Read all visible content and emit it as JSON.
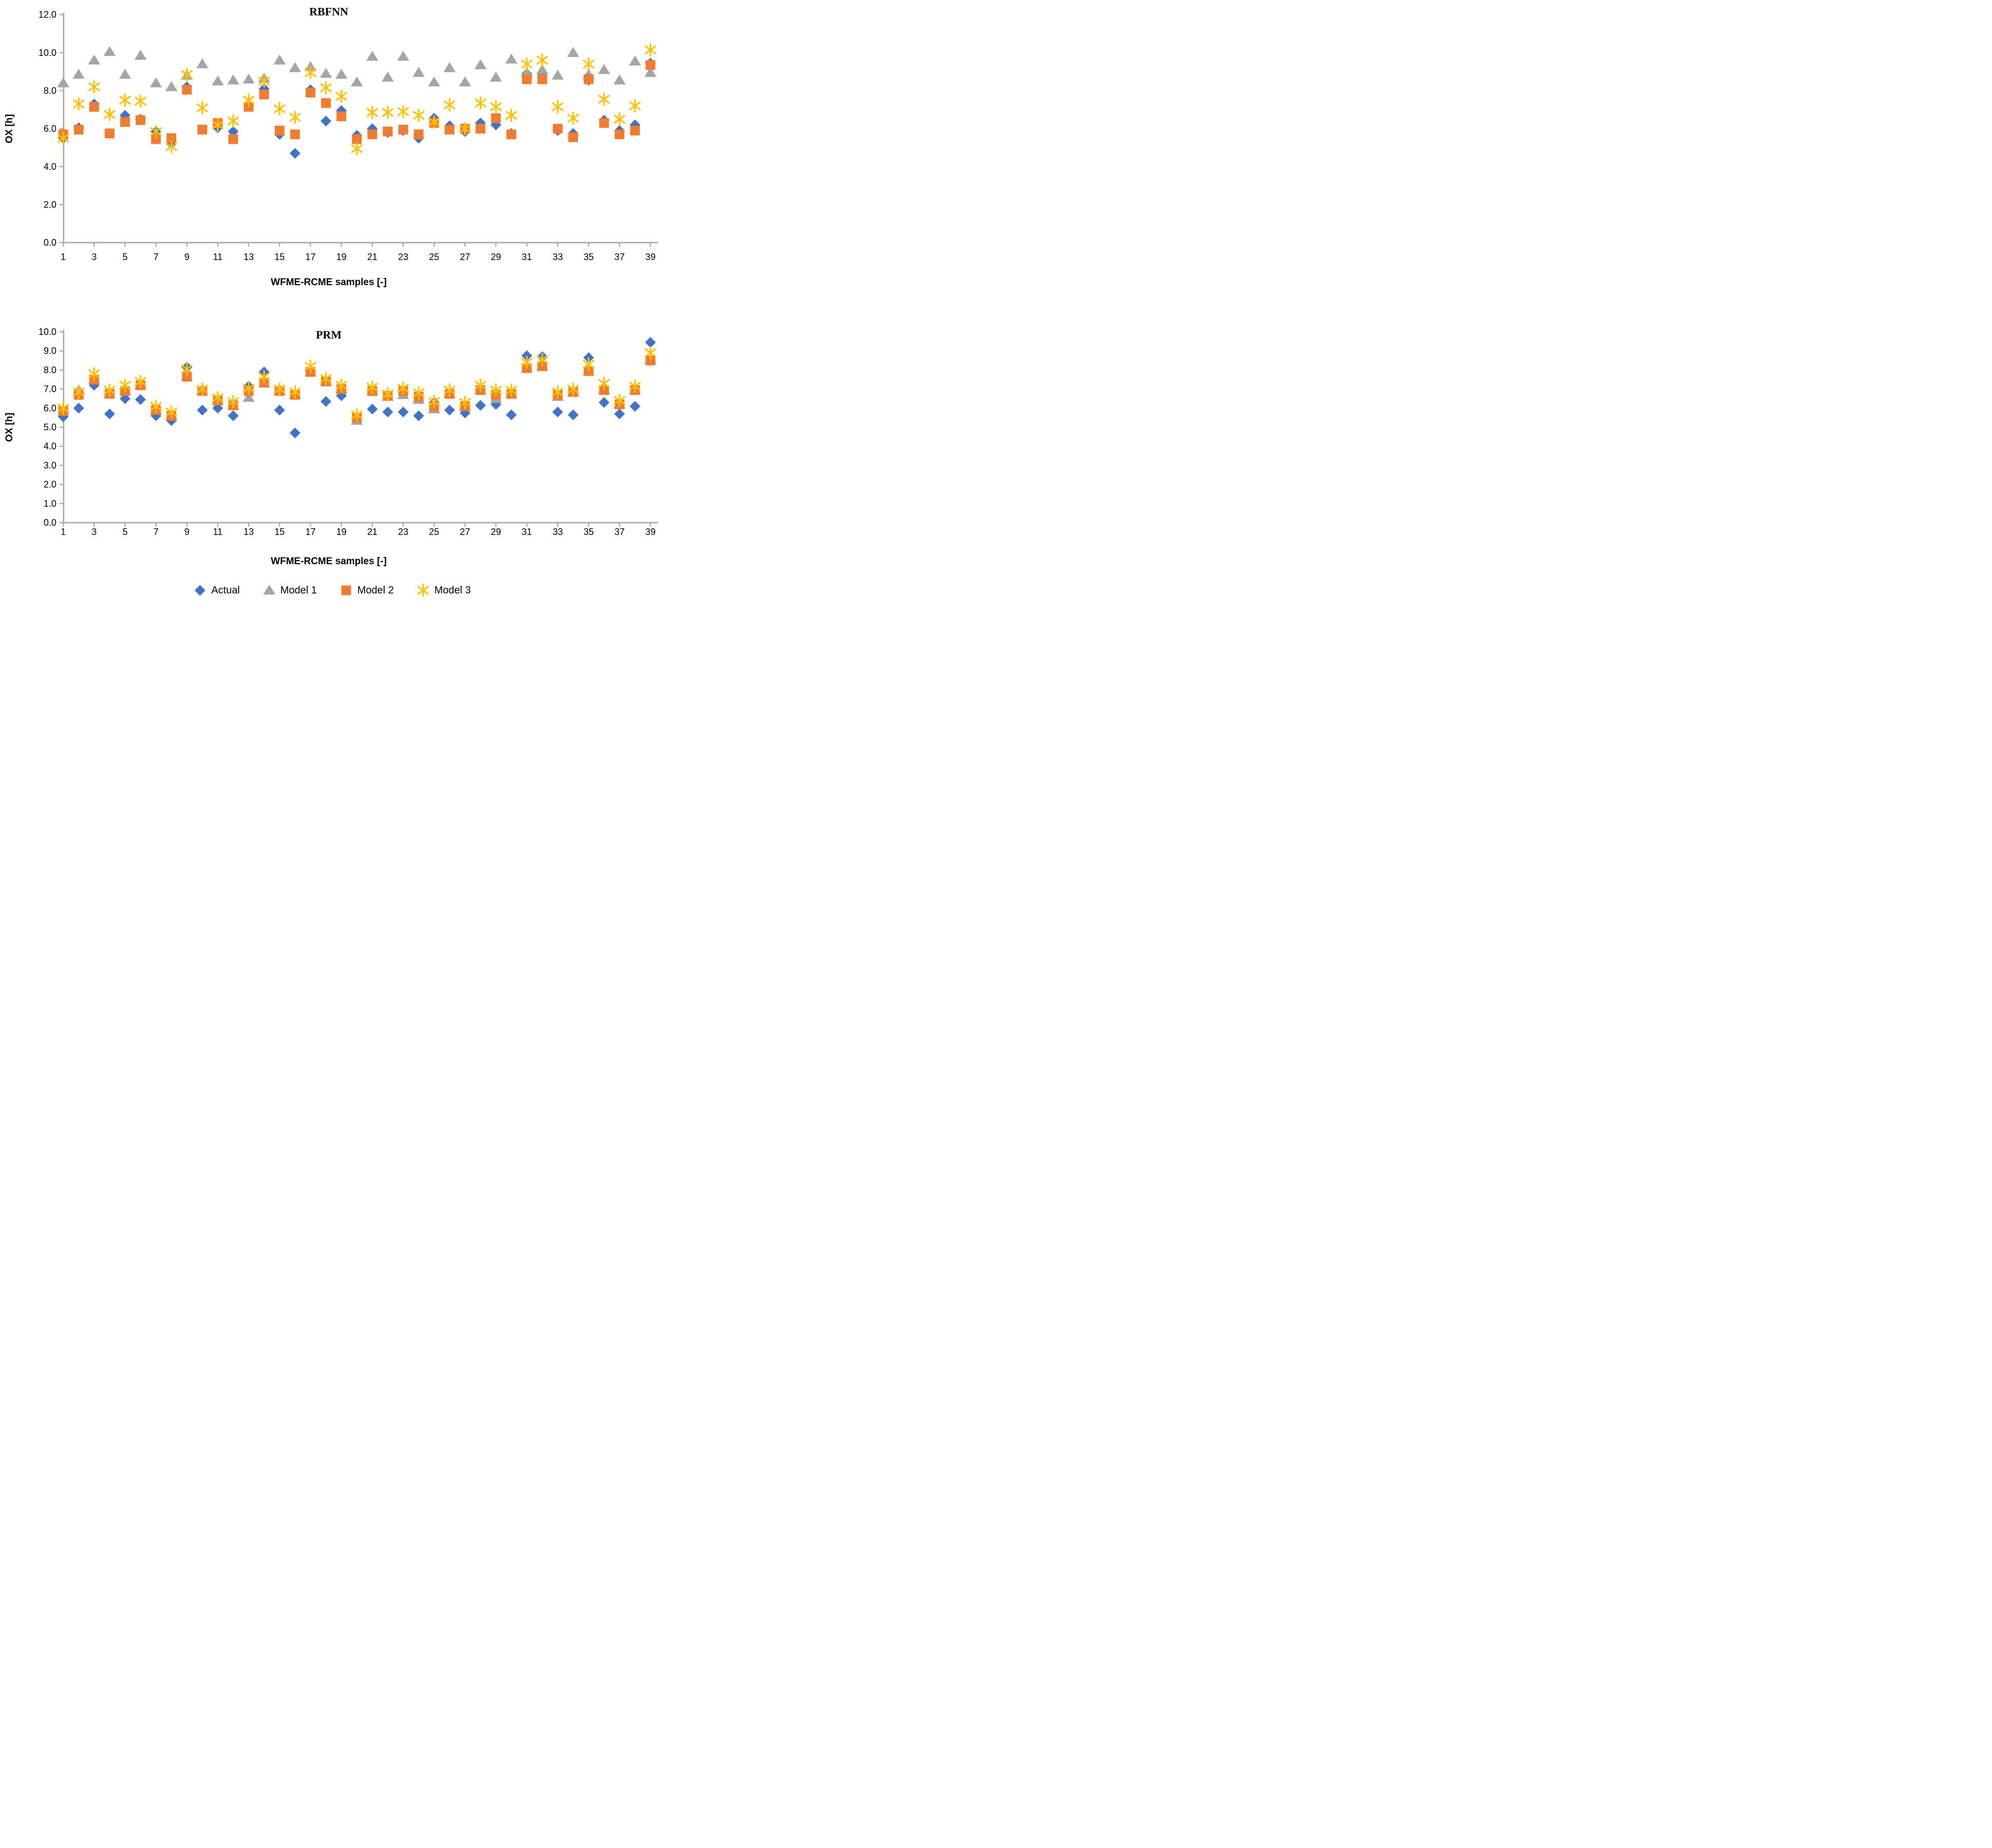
{
  "page": {
    "top_title": "RBFNN",
    "bottom_title": "PRM",
    "x_axis_title": "WFME-RCME samples [-]",
    "y_axis_title": "OX [h]"
  },
  "colors": {
    "actual": "#4472C4",
    "model1": "#A5A5A5",
    "model2": "#ED7D31",
    "model3": "#FFC000",
    "axis_line": "#A6A6A6",
    "text": "#000000"
  },
  "legend": {
    "items": [
      {
        "label": "Actual",
        "marker": "diamond",
        "color": "#4472C4"
      },
      {
        "label": "Model 1",
        "marker": "triangle",
        "color": "#A5A5A5"
      },
      {
        "label": "Model 2",
        "marker": "square",
        "color": "#ED7D31"
      },
      {
        "label": "Model 3",
        "marker": "star",
        "color": "#FFC000"
      }
    ]
  },
  "chart_data": [
    {
      "type": "scatter",
      "title": "RBFNN",
      "xlabel": "WFME-RCME samples [-]",
      "ylabel": "OX [h]",
      "ylim": [
        0,
        12
      ],
      "ytick_labels": [
        "0.0",
        "2.0",
        "4.0",
        "6.0",
        "8.0",
        "10.0",
        "12.0"
      ],
      "xlim": [
        1,
        39
      ],
      "xtick_labels": [
        "1",
        "3",
        "5",
        "7",
        "9",
        "11",
        "13",
        "15",
        "17",
        "19",
        "21",
        "23",
        "25",
        "27",
        "29",
        "31",
        "33",
        "35",
        "37",
        "39"
      ],
      "grid": false,
      "legend_position": "shared-bottom",
      "x": [
        1,
        2,
        3,
        4,
        5,
        6,
        7,
        8,
        9,
        10,
        11,
        12,
        13,
        14,
        15,
        16,
        17,
        18,
        19,
        20,
        21,
        22,
        23,
        24,
        25,
        26,
        27,
        28,
        29,
        30,
        31,
        32,
        33,
        34,
        35,
        36,
        37,
        38,
        39
      ],
      "series": [
        {
          "name": "Actual",
          "marker": "diamond",
          "color": "#4472C4",
          "values": [
            5.5,
            6.05,
            7.3,
            5.75,
            6.7,
            6.5,
            5.85,
            5.2,
            8.2,
            5.95,
            6.05,
            5.85,
            7.2,
            8.1,
            5.7,
            4.7,
            8.05,
            6.4,
            6.95,
            5.65,
            6.0,
            5.8,
            5.9,
            5.5,
            6.55,
            6.15,
            5.85,
            6.3,
            6.2,
            5.75,
            8.9,
            8.8,
            5.9,
            5.75,
            8.55,
            6.45,
            5.9,
            6.2,
            9.45
          ]
        },
        {
          "name": "Model 1",
          "marker": "triangle",
          "color": "#A5A5A5",
          "values": [
            8.4,
            8.85,
            9.6,
            10.05,
            8.85,
            9.85,
            8.4,
            8.2,
            8.8,
            9.4,
            8.5,
            8.55,
            8.6,
            8.65,
            9.6,
            9.2,
            9.25,
            8.9,
            8.85,
            8.45,
            9.8,
            8.7,
            9.8,
            8.95,
            8.45,
            9.2,
            8.45,
            9.35,
            8.7,
            9.65,
            8.95,
            9.1,
            8.8,
            10.0,
            8.85,
            9.1,
            8.55,
            9.55,
            8.95
          ]
        },
        {
          "name": "Model 2",
          "marker": "square",
          "color": "#ED7D31",
          "values": [
            5.7,
            5.95,
            7.15,
            5.75,
            6.35,
            6.45,
            5.45,
            5.5,
            8.05,
            5.95,
            6.3,
            5.45,
            7.15,
            7.8,
            5.9,
            5.7,
            7.9,
            7.35,
            6.65,
            5.45,
            5.7,
            5.85,
            5.95,
            5.7,
            6.3,
            5.95,
            6.0,
            6.0,
            6.55,
            5.7,
            8.6,
            8.6,
            6.0,
            5.55,
            8.6,
            6.3,
            5.7,
            5.9,
            9.35
          ]
        },
        {
          "name": "Model 3",
          "marker": "star",
          "color": "#FFC000",
          "values": [
            5.5,
            7.3,
            8.2,
            6.75,
            7.5,
            7.45,
            5.85,
            5.05,
            8.85,
            7.1,
            6.2,
            6.4,
            7.5,
            8.5,
            7.05,
            6.6,
            8.95,
            8.15,
            7.7,
            4.95,
            6.85,
            6.85,
            6.9,
            6.7,
            6.35,
            7.25,
            6.0,
            7.35,
            7.15,
            6.7,
            9.4,
            9.6,
            7.15,
            6.55,
            9.4,
            7.55,
            6.5,
            7.2,
            10.15
          ]
        }
      ]
    },
    {
      "type": "scatter",
      "title": "PRM",
      "xlabel": "WFME-RCME samples [-]",
      "ylabel": "OX [h]",
      "ylim": [
        0,
        10
      ],
      "ytick_labels": [
        "0.0",
        "1.0",
        "2.0",
        "3.0",
        "4.0",
        "5.0",
        "6.0",
        "7.0",
        "8.0",
        "9.0",
        "10.0"
      ],
      "xlim": [
        1,
        39
      ],
      "xtick_labels": [
        "1",
        "3",
        "5",
        "7",
        "9",
        "11",
        "13",
        "15",
        "17",
        "19",
        "21",
        "23",
        "25",
        "27",
        "29",
        "31",
        "33",
        "35",
        "37",
        "39"
      ],
      "grid": false,
      "legend_position": "shared-bottom",
      "x": [
        1,
        2,
        3,
        4,
        5,
        6,
        7,
        8,
        9,
        10,
        11,
        12,
        13,
        14,
        15,
        16,
        17,
        18,
        19,
        20,
        21,
        22,
        23,
        24,
        25,
        26,
        27,
        28,
        29,
        30,
        31,
        32,
        33,
        34,
        35,
        36,
        37,
        38,
        39
      ],
      "series": [
        {
          "name": "Actual",
          "marker": "diamond",
          "color": "#4472C4",
          "values": [
            5.55,
            6.0,
            7.2,
            5.7,
            6.5,
            6.45,
            5.6,
            5.35,
            8.15,
            5.9,
            6.0,
            5.6,
            7.15,
            7.9,
            5.9,
            4.7,
            7.95,
            6.35,
            6.65,
            5.45,
            5.95,
            5.8,
            5.8,
            5.6,
            6.3,
            5.9,
            5.75,
            6.15,
            6.2,
            5.65,
            8.75,
            8.7,
            5.8,
            5.65,
            8.65,
            6.3,
            5.7,
            6.1,
            9.45
          ]
        },
        {
          "name": "Model 1",
          "marker": "triangle",
          "color": "#A5A5A5",
          "values": [
            5.85,
            6.95,
            7.5,
            6.75,
            6.9,
            7.2,
            5.9,
            5.6,
            7.65,
            6.9,
            6.4,
            6.15,
            6.55,
            7.3,
            6.9,
            6.7,
            7.9,
            7.4,
            7.0,
            5.35,
            6.9,
            6.6,
            6.7,
            6.45,
            5.95,
            6.75,
            6.1,
            6.95,
            6.5,
            6.75,
            8.1,
            8.2,
            6.6,
            6.85,
            7.95,
            6.95,
            6.2,
            6.95,
            8.55
          ]
        },
        {
          "name": "Model 2",
          "marker": "square",
          "color": "#ED7D31",
          "values": [
            5.85,
            6.7,
            7.5,
            6.75,
            6.9,
            7.2,
            5.9,
            5.6,
            7.65,
            6.9,
            6.4,
            6.15,
            6.9,
            7.35,
            6.9,
            6.7,
            7.9,
            7.4,
            7.0,
            5.5,
            6.9,
            6.65,
            6.9,
            6.6,
            6.1,
            6.75,
            6.1,
            6.95,
            6.7,
            6.75,
            8.1,
            8.2,
            6.7,
            6.85,
            7.95,
            6.95,
            6.2,
            6.95,
            8.5
          ]
        },
        {
          "name": "Model 3",
          "marker": "star",
          "color": "#FFC000",
          "values": [
            6.0,
            6.85,
            7.8,
            6.95,
            7.2,
            7.4,
            6.1,
            5.8,
            8.05,
            7.0,
            6.55,
            6.35,
            7.05,
            7.65,
            7.0,
            6.85,
            8.2,
            7.55,
            7.2,
            5.65,
            7.1,
            6.75,
            7.05,
            6.8,
            6.35,
            6.95,
            6.3,
            7.2,
            6.95,
            6.95,
            8.4,
            8.55,
            6.85,
            7.0,
            8.3,
            7.3,
            6.4,
            7.15,
            8.9
          ]
        }
      ]
    }
  ]
}
